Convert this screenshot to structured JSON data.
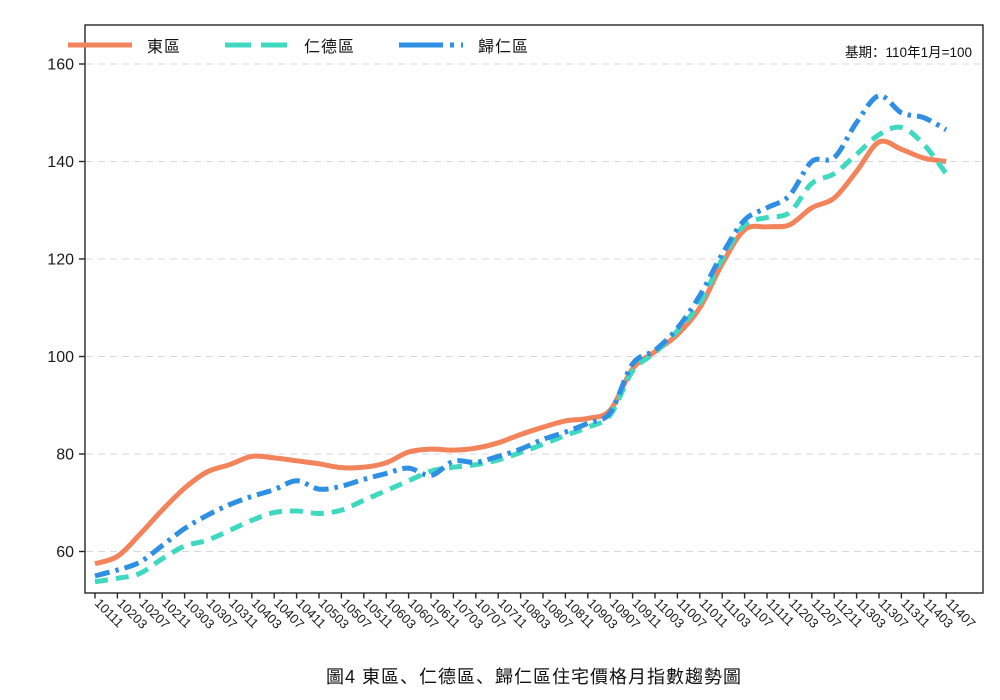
{
  "chart_data": {
    "type": "line",
    "title": "圖4 東區、仁德區、歸仁區住宅價格月指數趨勢圖",
    "annotation": "基期：110年1月=100",
    "x_labels": [
      "10111",
      "10203",
      "10207",
      "10211",
      "10303",
      "10307",
      "10311",
      "10403",
      "10407",
      "10411",
      "10503",
      "10507",
      "10511",
      "10603",
      "10607",
      "10611",
      "10703",
      "10707",
      "10711",
      "10803",
      "10807",
      "10811",
      "10903",
      "10907",
      "10911",
      "11003",
      "11007",
      "11011",
      "11103",
      "11107",
      "11111",
      "11203",
      "11207",
      "11211",
      "11303",
      "11307",
      "11311",
      "11403",
      "11407"
    ],
    "yticks": [
      60,
      80,
      100,
      120,
      140,
      160
    ],
    "ylim": [
      51.5,
      168
    ],
    "grid": true,
    "legend_position": "top-left",
    "axis_color": "#262626",
    "grid_color": "#d9d9d9",
    "series": [
      {
        "name": "東區",
        "color": "#F3835B",
        "style": "solid",
        "values": [
          57.5,
          59,
          63.5,
          68.5,
          73,
          76.3,
          77.8,
          79.5,
          79.2,
          78.6,
          78,
          77.2,
          77.3,
          78.2,
          80.4,
          81,
          80.8,
          81.2,
          82.3,
          84,
          85.5,
          86.8,
          87.3,
          89,
          97.5,
          101,
          104.5,
          110,
          119,
          126,
          126.6,
          127,
          130.5,
          132.5,
          138,
          144,
          142.5,
          140.7,
          140
        ]
      },
      {
        "name": "仁德區",
        "color": "#3FD9C0",
        "style": "dashed",
        "values": [
          53.8,
          54.5,
          55.5,
          58.5,
          61.1,
          62.3,
          64.3,
          66.4,
          68,
          68.3,
          67.8,
          68.5,
          70.5,
          72.5,
          74.5,
          76.5,
          77.3,
          77.8,
          78.8,
          80.3,
          82,
          83.8,
          85.5,
          88,
          97,
          100.8,
          105.3,
          111,
          120,
          127,
          128.5,
          129.5,
          135.5,
          137.5,
          141.5,
          145.5,
          147,
          143.5,
          137.5
        ]
      },
      {
        "name": "歸仁區",
        "color": "#2E8FE4",
        "style": "dashdot",
        "values": [
          55,
          56.2,
          57.8,
          61.2,
          64.7,
          67.4,
          69.6,
          71.3,
          72.7,
          74.5,
          72.8,
          73.4,
          74.8,
          76,
          77.1,
          75.6,
          78.5,
          78.3,
          79.5,
          81,
          83,
          84.5,
          86.3,
          88.5,
          98.5,
          101.3,
          105.8,
          112.5,
          121,
          128,
          130.5,
          133,
          140,
          140.8,
          148,
          153.5,
          150,
          149,
          146.5
        ]
      }
    ]
  }
}
